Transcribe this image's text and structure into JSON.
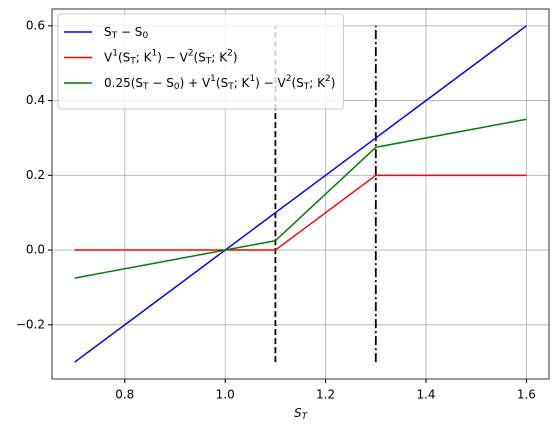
{
  "chart_data": {
    "type": "line",
    "x_label": "S_T",
    "x": [
      0.7,
      1.1,
      1.3,
      1.6
    ],
    "series": [
      {
        "name": "S_T − S_0",
        "color": "#0000ff",
        "values": [
          -0.3,
          0.1,
          0.3,
          0.6
        ]
      },
      {
        "name": "V^1(S_T; K^1) − V^2(S_T; K^2)",
        "color": "#ff0000",
        "values": [
          0,
          0,
          0.2,
          0.2
        ]
      },
      {
        "name": "0.25(S_T − S_0) + V^1(S_T; K^1) − V^2(S_T; K^2)",
        "color": "#008000",
        "values": [
          -0.075,
          0.025,
          0.275,
          0.35
        ]
      }
    ],
    "vlines": [
      {
        "x": 1.1,
        "ymin": -0.3,
        "ymax": 0.6,
        "style": "dashed",
        "color": "#000000"
      },
      {
        "x": 1.3,
        "ymin": -0.3,
        "ymax": 0.6,
        "style": "dashdot",
        "color": "#000000"
      }
    ],
    "xlim": [
      0.655,
      1.645
    ],
    "ylim": [
      -0.345,
      0.645
    ],
    "xticks": [
      0.8,
      {
        "value": 1,
        "label": "1.0"
      },
      1.2,
      1.4,
      1.6
    ],
    "yticks": [
      {
        "value": -0.2,
        "label": "−0.2"
      },
      {
        "value": 0,
        "label": "0.0"
      },
      0.2,
      0.4,
      0.6
    ],
    "grid": true,
    "legend": "upper-left"
  }
}
